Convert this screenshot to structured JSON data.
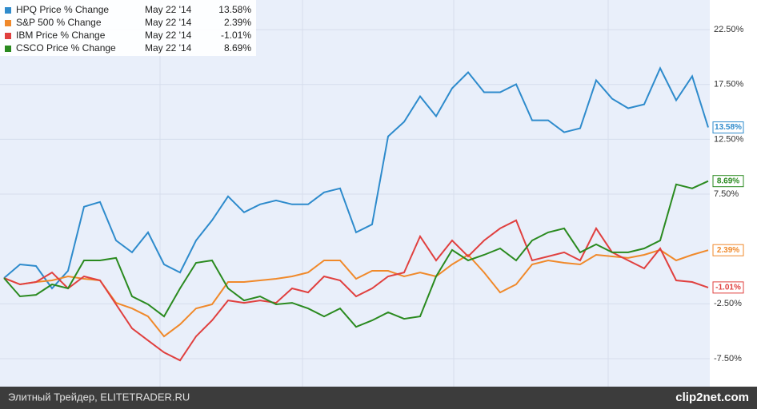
{
  "chart_data": {
    "type": "line",
    "categories": [
      null,
      null,
      null,
      null,
      null,
      null,
      null,
      null,
      null,
      null,
      null,
      null,
      null,
      null,
      null,
      null,
      null,
      null,
      null,
      null,
      null,
      null,
      null,
      null,
      null,
      null,
      null,
      null,
      null,
      null,
      null,
      null,
      null,
      null,
      null,
      null,
      null,
      null,
      null,
      null,
      null,
      null,
      null,
      null,
      null
    ],
    "ylim": [
      -10.05,
      25.2
    ],
    "yticks": [
      {
        "value": 22.5,
        "label": "22.50%"
      },
      {
        "value": 17.5,
        "label": "17.50%"
      },
      {
        "value": 12.5,
        "label": "12.50%"
      },
      {
        "value": 7.5,
        "label": "7.50%"
      },
      {
        "value": -2.5,
        "label": "-2.50%"
      },
      {
        "value": -7.5,
        "label": "-7.50%"
      }
    ],
    "grid": true,
    "series": [
      {
        "name": "HPQ Price % Change",
        "date": "May 22 '14",
        "latest_label": "13.58%",
        "color": "#2e8bcc",
        "values": [
          -0.15,
          1.09,
          0.95,
          -1.09,
          0.51,
          6.35,
          6.79,
          3.28,
          2.19,
          4.01,
          1.09,
          0.36,
          3.28,
          5.11,
          7.3,
          5.84,
          6.57,
          6.93,
          6.57,
          6.57,
          7.66,
          8.03,
          4.01,
          4.74,
          12.77,
          14.09,
          16.42,
          14.6,
          17.15,
          18.61,
          16.79,
          16.79,
          17.52,
          14.23,
          14.23,
          13.14,
          13.5,
          17.88,
          16.2,
          15.33,
          15.69,
          18.98,
          16.06,
          18.25,
          13.58
        ]
      },
      {
        "name": "S&P 500 % Change",
        "date": "May 22 '14",
        "latest_label": "2.39%",
        "color": "#f0892a",
        "values": [
          -0.15,
          -0.73,
          -0.51,
          -0.36,
          0,
          -0.22,
          -0.36,
          -2.41,
          -2.92,
          -3.65,
          -5.47,
          -4.38,
          -2.92,
          -2.55,
          -0.51,
          -0.51,
          -0.36,
          -0.22,
          0,
          0.36,
          1.46,
          1.46,
          -0.22,
          0.51,
          0.51,
          0,
          0.36,
          0,
          1.09,
          1.97,
          0.36,
          -1.46,
          -0.73,
          1.09,
          1.46,
          1.24,
          1.09,
          1.97,
          1.82,
          1.68,
          1.97,
          2.41,
          1.46,
          1.97,
          2.39
        ]
      },
      {
        "name": "IBM Price % Change",
        "date": "May 22 '14",
        "latest_label": "-1.01%",
        "color": "#e0403f",
        "values": [
          -0.15,
          -0.73,
          -0.51,
          0.36,
          -1.09,
          0,
          -0.36,
          -2.55,
          -4.74,
          -5.84,
          -6.93,
          -7.66,
          -5.47,
          -4.01,
          -2.19,
          -2.41,
          -2.19,
          -2.41,
          -1.09,
          -1.46,
          0,
          -0.36,
          -1.82,
          -1.09,
          0,
          0.36,
          3.65,
          1.46,
          3.28,
          1.82,
          3.28,
          4.38,
          5.11,
          1.46,
          1.82,
          2.19,
          1.46,
          4.38,
          2.19,
          1.46,
          0.73,
          2.55,
          -0.36,
          -0.51,
          -1.01
        ]
      },
      {
        "name": "CSCO Price % Change",
        "date": "May 22 '14",
        "latest_label": "8.69%",
        "color": "#2a8a1f",
        "values": [
          -0.15,
          -1.82,
          -1.68,
          -0.73,
          -1.09,
          1.46,
          1.46,
          1.68,
          -1.82,
          -2.55,
          -3.65,
          -1.09,
          1.24,
          1.46,
          -1.09,
          -2.19,
          -1.82,
          -2.55,
          -2.41,
          -2.92,
          -3.65,
          -2.92,
          -4.6,
          -4.01,
          -3.28,
          -3.87,
          -3.65,
          0,
          2.41,
          1.46,
          1.97,
          2.55,
          1.46,
          3.28,
          4.01,
          4.38,
          2.19,
          2.92,
          2.19,
          2.19,
          2.55,
          3.28,
          8.39,
          8.03,
          8.69
        ]
      }
    ]
  },
  "footer": {
    "left": "Элитный Трейдер, ELITETRADER.RU",
    "right": "clip2net.com"
  }
}
